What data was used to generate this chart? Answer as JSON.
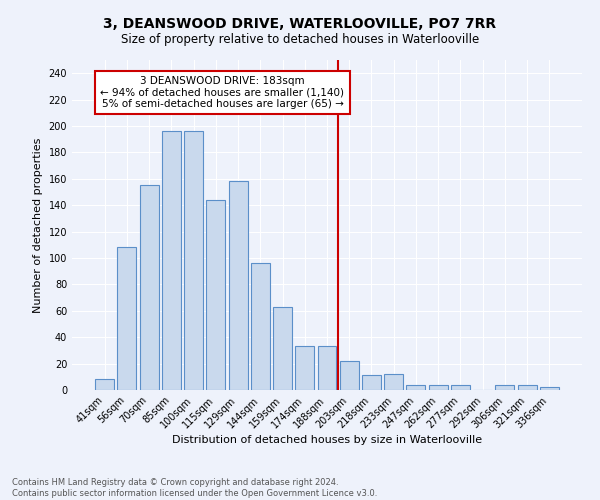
{
  "title": "3, DEANSWOOD DRIVE, WATERLOOVILLE, PO7 7RR",
  "subtitle": "Size of property relative to detached houses in Waterlooville",
  "xlabel": "Distribution of detached houses by size in Waterlooville",
  "ylabel": "Number of detached properties",
  "footnote1": "Contains HM Land Registry data © Crown copyright and database right 2024.",
  "footnote2": "Contains public sector information licensed under the Open Government Licence v3.0.",
  "annotation_title": "3 DEANSWOOD DRIVE: 183sqm",
  "annotation_line1": "← 94% of detached houses are smaller (1,140)",
  "annotation_line2": "5% of semi-detached houses are larger (65) →",
  "bar_labels": [
    "41sqm",
    "56sqm",
    "70sqm",
    "85sqm",
    "100sqm",
    "115sqm",
    "129sqm",
    "144sqm",
    "159sqm",
    "174sqm",
    "188sqm",
    "203sqm",
    "218sqm",
    "233sqm",
    "247sqm",
    "262sqm",
    "277sqm",
    "292sqm",
    "306sqm",
    "321sqm",
    "336sqm"
  ],
  "bar_values": [
    8,
    108,
    155,
    196,
    196,
    144,
    158,
    96,
    63,
    33,
    33,
    22,
    11,
    12,
    4,
    4,
    4,
    0,
    4,
    4,
    2
  ],
  "bar_color": "#c9d9ed",
  "bar_edge_color": "#5b8fc9",
  "vline_x_index": 10.5,
  "vline_color": "#cc0000",
  "background_color": "#eef2fb",
  "grid_color": "#ffffff",
  "ylim": [
    0,
    250
  ],
  "yticks": [
    0,
    20,
    40,
    60,
    80,
    100,
    120,
    140,
    160,
    180,
    200,
    220,
    240
  ],
  "title_fontsize": 10,
  "subtitle_fontsize": 8.5,
  "ylabel_fontsize": 8,
  "xlabel_fontsize": 8,
  "tick_fontsize": 7,
  "annot_fontsize": 7.5,
  "footnote_fontsize": 6
}
